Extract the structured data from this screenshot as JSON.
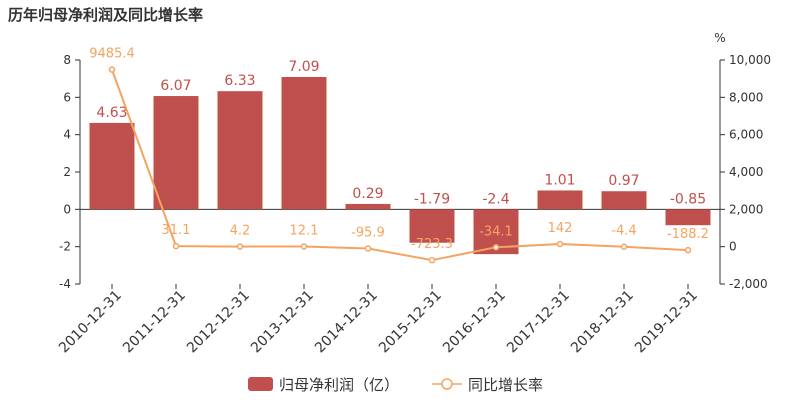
{
  "title": "历年归母净利润及同比增长率",
  "chart_data": {
    "type": "bar",
    "categories": [
      "2010-12-31",
      "2011-12-31",
      "2012-12-31",
      "2013-12-31",
      "2014-12-31",
      "2015-12-31",
      "2016-12-31",
      "2017-12-31",
      "2018-12-31",
      "2019-12-31"
    ],
    "series": [
      {
        "name": "归母净利润（亿）",
        "type": "bar",
        "axis": "left",
        "color": "#c0504d",
        "values": [
          4.63,
          6.07,
          6.33,
          7.09,
          0.29,
          -1.79,
          -2.4,
          1.01,
          0.97,
          -0.85
        ],
        "labels": [
          "4.63",
          "6.07",
          "6.33",
          "7.09",
          "0.29",
          "-1.79",
          "-2.4",
          "1.01",
          "0.97",
          "-0.85"
        ]
      },
      {
        "name": "同比增长率",
        "type": "line",
        "axis": "right",
        "color": "#f4a460",
        "values": [
          9485.4,
          31.1,
          4.2,
          12.1,
          -95.9,
          -723.3,
          -34.1,
          142,
          -4.4,
          -188.2
        ],
        "labels": [
          "9485.4",
          "31.1",
          "4.2",
          "12.1",
          "-95.9",
          "-723.3",
          "-34.1",
          "142",
          "-4.4",
          "-188.2"
        ]
      }
    ],
    "y_left": {
      "min": -4,
      "max": 8,
      "ticks": [
        "8",
        "6",
        "4",
        "2",
        "0",
        "-2",
        "-4"
      ]
    },
    "y_right": {
      "min": -2000,
      "max": 10000,
      "unit": "%",
      "ticks": [
        "10,000",
        "8,000",
        "6,000",
        "4,000",
        "2,000",
        "0",
        "-2,000"
      ]
    },
    "legend_position": "bottom"
  }
}
